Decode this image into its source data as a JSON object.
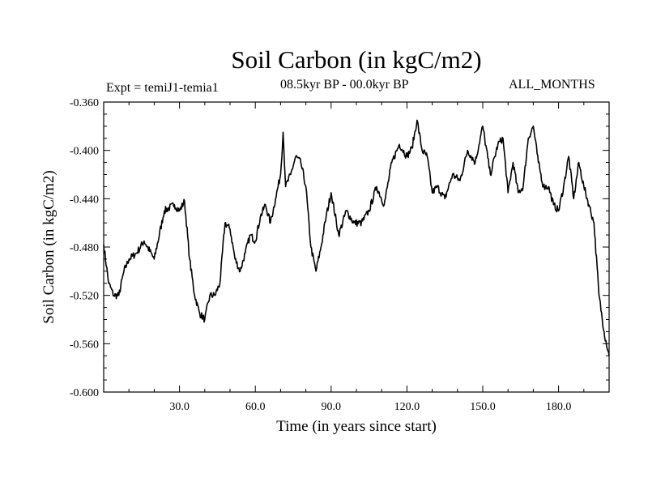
{
  "chart_data": {
    "type": "line",
    "title": "Soil Carbon (in kgC/m2)",
    "subtitle_left": "Expt = temiJ1-temia1",
    "subtitle_center": "08.5kyr BP - 00.0kyr BP",
    "subtitle_right": "ALL_MONTHS",
    "xlabel": "Time (in years since start)",
    "ylabel": "Soil Carbon (in kgC/m2)",
    "xlim": [
      0,
      200
    ],
    "ylim": [
      -0.6,
      -0.36
    ],
    "xticks": [
      "30.0",
      "60.0",
      "90.0",
      "120.0",
      "150.0",
      "180.0"
    ],
    "yticks": [
      "-0.360",
      "-0.400",
      "-0.440",
      "-0.480",
      "-0.520",
      "-0.560",
      "-0.600"
    ],
    "grid": false,
    "series": [
      {
        "name": "Soil Carbon",
        "x": [
          0,
          2,
          4,
          6,
          8,
          10,
          13,
          16,
          20,
          24,
          28,
          30,
          32,
          34,
          36,
          38,
          40,
          42,
          44,
          46,
          48,
          50,
          52,
          54,
          56,
          58,
          60,
          62,
          64,
          66,
          68,
          70,
          71,
          72,
          74,
          76,
          78,
          80,
          82,
          84,
          86,
          88,
          90,
          93,
          96,
          99,
          102,
          105,
          108,
          111,
          114,
          117,
          120,
          122,
          124,
          126,
          128,
          130,
          132,
          135,
          138,
          141,
          144,
          147,
          150,
          153,
          156,
          158,
          160,
          162,
          164,
          166,
          168,
          170,
          172,
          174,
          176,
          178,
          180,
          182,
          184,
          186,
          188,
          190,
          192,
          194,
          196,
          198,
          200
        ],
        "values": [
          -0.478,
          -0.51,
          -0.52,
          -0.52,
          -0.5,
          -0.49,
          -0.485,
          -0.475,
          -0.49,
          -0.45,
          -0.445,
          -0.45,
          -0.442,
          -0.49,
          -0.52,
          -0.535,
          -0.54,
          -0.52,
          -0.52,
          -0.51,
          -0.46,
          -0.465,
          -0.49,
          -0.5,
          -0.485,
          -0.47,
          -0.475,
          -0.455,
          -0.445,
          -0.46,
          -0.44,
          -0.42,
          -0.385,
          -0.43,
          -0.42,
          -0.405,
          -0.41,
          -0.43,
          -0.48,
          -0.5,
          -0.48,
          -0.455,
          -0.435,
          -0.47,
          -0.45,
          -0.46,
          -0.46,
          -0.45,
          -0.43,
          -0.445,
          -0.41,
          -0.395,
          -0.405,
          -0.398,
          -0.375,
          -0.4,
          -0.405,
          -0.435,
          -0.43,
          -0.44,
          -0.42,
          -0.425,
          -0.4,
          -0.41,
          -0.38,
          -0.42,
          -0.395,
          -0.39,
          -0.435,
          -0.41,
          -0.435,
          -0.43,
          -0.39,
          -0.38,
          -0.41,
          -0.43,
          -0.43,
          -0.445,
          -0.45,
          -0.43,
          -0.405,
          -0.44,
          -0.41,
          -0.43,
          -0.445,
          -0.46,
          -0.52,
          -0.55,
          -0.57
        ]
      }
    ]
  }
}
